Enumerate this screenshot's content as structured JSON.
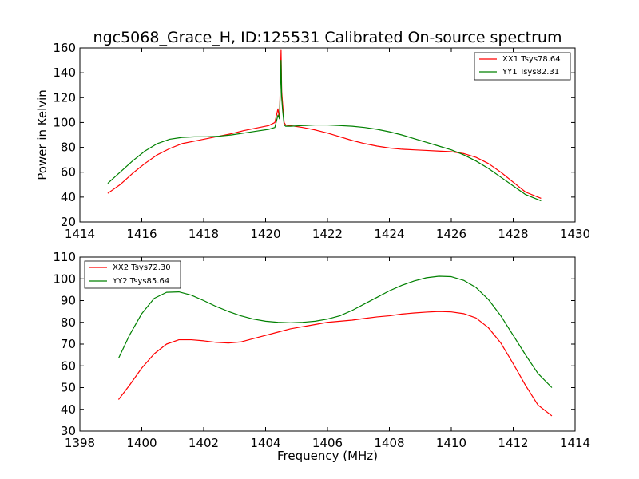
{
  "chart_data": [
    {
      "type": "line",
      "title": "ngc5068_Grace_H, ID:125531 Calibrated On-source spectrum",
      "xlabel": "",
      "ylabel": "Power in Kelvin",
      "xlim": [
        1414,
        1430
      ],
      "ylim": [
        20,
        160
      ],
      "xticks": [
        "1414",
        "1416",
        "1418",
        "1420",
        "1422",
        "1424",
        "1426",
        "1428",
        "1430"
      ],
      "yticks": [
        "20",
        "40",
        "60",
        "80",
        "100",
        "120",
        "140",
        "160"
      ],
      "grid": false,
      "legend_position": "top-right",
      "series": [
        {
          "name": "XX1 Tsys78.64",
          "color": "#ff0000",
          "x": [
            1414.9,
            1415.3,
            1415.7,
            1416.1,
            1416.5,
            1416.9,
            1417.3,
            1417.7,
            1418.1,
            1418.5,
            1418.9,
            1419.3,
            1419.7,
            1420.1,
            1420.3,
            1420.4,
            1420.45,
            1420.5,
            1420.52,
            1420.55,
            1420.6,
            1420.65,
            1420.8,
            1421.2,
            1421.6,
            1422.0,
            1422.4,
            1422.8,
            1423.2,
            1423.6,
            1424.0,
            1424.4,
            1424.8,
            1425.2,
            1425.6,
            1426.0,
            1426.4,
            1426.8,
            1427.2,
            1427.6,
            1428.0,
            1428.4,
            1428.9
          ],
          "y": [
            43,
            50,
            59,
            67,
            74,
            79,
            83,
            85,
            87,
            89,
            91,
            93.5,
            95.5,
            97.5,
            100,
            111,
            103,
            158,
            125,
            115,
            100,
            98,
            97.5,
            96,
            94,
            91.5,
            88.5,
            85.5,
            83,
            81,
            79.5,
            78.5,
            78,
            77.5,
            77,
            76.5,
            75,
            72,
            67,
            60,
            52,
            44,
            39
          ]
        },
        {
          "name": "YY1 Tsys82.31",
          "color": "#008000",
          "x": [
            1414.9,
            1415.3,
            1415.7,
            1416.1,
            1416.5,
            1416.9,
            1417.3,
            1417.7,
            1418.1,
            1418.5,
            1418.9,
            1419.3,
            1419.7,
            1420.1,
            1420.3,
            1420.4,
            1420.45,
            1420.5,
            1420.52,
            1420.55,
            1420.6,
            1420.65,
            1420.8,
            1421.2,
            1421.6,
            1422.0,
            1422.4,
            1422.8,
            1423.2,
            1423.6,
            1424.0,
            1424.4,
            1424.8,
            1425.2,
            1425.6,
            1426.0,
            1426.4,
            1426.8,
            1427.2,
            1427.6,
            1428.0,
            1428.4,
            1428.9
          ],
          "y": [
            51,
            60,
            69,
            77,
            83,
            86.5,
            88,
            88.5,
            88.5,
            89,
            90,
            91.5,
            93,
            94.5,
            96,
            106,
            103,
            150,
            120,
            110,
            98,
            97,
            97,
            97.5,
            98,
            98,
            97.5,
            97,
            96,
            94.5,
            92.5,
            90,
            87,
            84,
            81,
            78,
            74,
            69,
            63,
            56,
            49,
            42,
            37
          ]
        }
      ]
    },
    {
      "type": "line",
      "title": "",
      "xlabel": "Frequency (MHz)",
      "ylabel": "",
      "xlim": [
        1398,
        1414
      ],
      "ylim": [
        30,
        110
      ],
      "xticks": [
        "1398",
        "1400",
        "1402",
        "1404",
        "1406",
        "1408",
        "1410",
        "1412",
        "1414"
      ],
      "yticks": [
        "30",
        "40",
        "50",
        "60",
        "70",
        "80",
        "90",
        "100",
        "110"
      ],
      "grid": false,
      "legend_position": "top-left",
      "series": [
        {
          "name": "XX2 Tsys72.30",
          "color": "#ff0000",
          "x": [
            1399.25,
            1399.6,
            1400.0,
            1400.4,
            1400.8,
            1401.2,
            1401.6,
            1402.0,
            1402.4,
            1402.8,
            1403.2,
            1403.6,
            1404.0,
            1404.4,
            1404.8,
            1405.2,
            1405.6,
            1406.0,
            1406.4,
            1406.8,
            1407.2,
            1407.6,
            1408.0,
            1408.4,
            1408.8,
            1409.2,
            1409.6,
            1410.0,
            1410.4,
            1410.8,
            1411.2,
            1411.6,
            1412.0,
            1412.4,
            1412.8,
            1413.25
          ],
          "y": [
            44.5,
            51,
            59,
            65.5,
            70,
            72,
            72,
            71.5,
            70.8,
            70.5,
            71,
            72.5,
            74,
            75.5,
            77,
            78,
            79,
            80,
            80.5,
            81,
            81.8,
            82.5,
            83,
            83.8,
            84.3,
            84.7,
            85,
            84.8,
            84,
            82,
            77.5,
            70.5,
            61,
            51,
            42,
            37
          ]
        },
        {
          "name": "YY2 Tsys85.64",
          "color": "#008000",
          "x": [
            1399.25,
            1399.6,
            1400.0,
            1400.4,
            1400.8,
            1401.2,
            1401.6,
            1402.0,
            1402.4,
            1402.8,
            1403.2,
            1403.6,
            1404.0,
            1404.4,
            1404.8,
            1405.2,
            1405.6,
            1406.0,
            1406.4,
            1406.8,
            1407.2,
            1407.6,
            1408.0,
            1408.4,
            1408.8,
            1409.2,
            1409.6,
            1410.0,
            1410.4,
            1410.8,
            1411.2,
            1411.6,
            1412.0,
            1412.4,
            1412.8,
            1413.25
          ],
          "y": [
            63.5,
            74,
            84,
            91,
            93.8,
            94,
            92.5,
            90,
            87.3,
            85,
            83,
            81.5,
            80.5,
            80,
            79.8,
            80,
            80.5,
            81.5,
            83,
            85.5,
            88.5,
            91.5,
            94.5,
            97,
            99,
            100.5,
            101.2,
            101,
            99.3,
            96,
            90.5,
            83,
            74,
            65,
            56.5,
            50
          ]
        }
      ]
    }
  ]
}
